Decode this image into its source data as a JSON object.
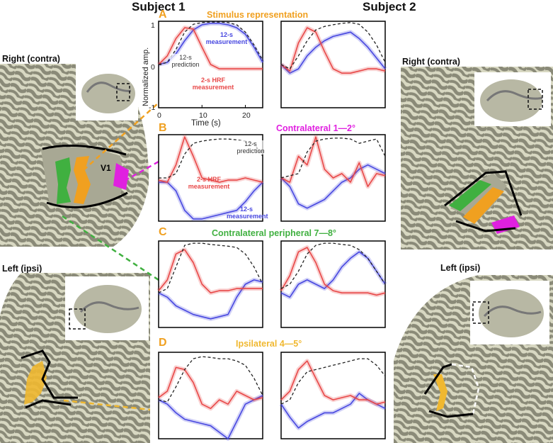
{
  "figure": {
    "subject1": "Subject 1",
    "subject2": "Subject 2",
    "hemispheres": {
      "s1_right": "Right (contra)",
      "s1_left": "Left (ipsi)",
      "s2_right": "Right (contra)",
      "s2_left": "Left (ipsi)"
    },
    "roi_label": "V1",
    "colors": {
      "stim": "#f0a020",
      "contra_near": "#e020e0",
      "contra_periph": "#40b040",
      "ipsi": "#f0b830",
      "red": "#e84848",
      "blue": "#4848e0",
      "pred": "#222222"
    }
  },
  "panels": {
    "A": {
      "letter": "A",
      "title": "Stimulus representation",
      "annot_blue": "12-s measurement",
      "annot_pred": "12-s prediction",
      "annot_red": "2-s HRF measurement"
    },
    "B": {
      "letter": "B",
      "title": "Contralateral 1—2°",
      "annot_pred": "12-s prediction",
      "annot_red": "2-s HRF measurement",
      "annot_blue": "12-s measurement"
    },
    "C": {
      "letter": "C",
      "title": "Contralateral peripheral 7—8°"
    },
    "D": {
      "letter": "D",
      "title": "Ipsilateral 4—5°"
    }
  },
  "axes": {
    "ylabel": "Normalized amp.",
    "xlabel": "Time (s)",
    "yticks": [
      "1",
      "0",
      "-1"
    ],
    "xticks": [
      "0",
      "10",
      "20"
    ]
  },
  "chart_data": [
    {
      "type": "line",
      "panel": "A",
      "subject": "Subject 1",
      "xlabel": "Time (s)",
      "ylabel": "Normalized amp.",
      "xlim": [
        0,
        24
      ],
      "ylim": [
        -1,
        1
      ],
      "series": [
        {
          "name": "12-s prediction",
          "style": "dashed",
          "color": "#222222",
          "x": [
            0,
            2,
            4,
            6,
            8,
            10,
            12,
            14,
            16,
            18,
            20,
            22,
            24
          ],
          "y": [
            0.0,
            0.05,
            0.35,
            0.75,
            0.93,
            0.97,
            0.98,
            0.98,
            0.97,
            0.92,
            0.75,
            0.45,
            0.1
          ]
        },
        {
          "name": "2-s HRF measurement",
          "style": "solid",
          "color": "#e84848",
          "x": [
            0,
            2,
            4,
            6,
            8,
            10,
            12,
            14,
            16,
            18,
            20,
            22,
            24
          ],
          "y": [
            0.0,
            0.2,
            0.6,
            0.85,
            0.82,
            0.4,
            0.0,
            -0.1,
            -0.1,
            -0.1,
            -0.1,
            -0.1,
            -0.1
          ]
        },
        {
          "name": "12-s measurement",
          "style": "solid",
          "color": "#4848e0",
          "x": [
            0,
            2,
            4,
            6,
            8,
            10,
            12,
            14,
            16,
            18,
            20,
            22,
            24
          ],
          "y": [
            0.0,
            0.05,
            0.25,
            0.55,
            0.8,
            0.92,
            0.95,
            0.95,
            0.92,
            0.85,
            0.7,
            0.4,
            0.05
          ]
        }
      ]
    },
    {
      "type": "line",
      "panel": "A",
      "subject": "Subject 2",
      "xlim": [
        0,
        24
      ],
      "ylim": [
        -1,
        1
      ],
      "series": [
        {
          "name": "12-s prediction",
          "style": "dashed",
          "color": "#222222",
          "x": [
            0,
            2,
            4,
            6,
            8,
            10,
            12,
            14,
            16,
            18,
            20,
            22,
            24
          ],
          "y": [
            0.0,
            -0.1,
            0.2,
            0.55,
            0.8,
            0.88,
            0.92,
            0.95,
            0.97,
            0.93,
            0.75,
            0.45,
            0.05
          ]
        },
        {
          "name": "2-s HRF measurement",
          "style": "solid",
          "color": "#e84848",
          "x": [
            0,
            2,
            4,
            6,
            8,
            10,
            12,
            14,
            16,
            18,
            20,
            22,
            24
          ],
          "y": [
            0.0,
            -0.15,
            0.5,
            0.85,
            0.75,
            0.3,
            -0.1,
            -0.2,
            -0.2,
            -0.15,
            -0.1,
            -0.1,
            -0.15
          ]
        },
        {
          "name": "12-s measurement",
          "style": "solid",
          "color": "#4848e0",
          "x": [
            0,
            2,
            4,
            6,
            8,
            10,
            12,
            14,
            16,
            18,
            20,
            22,
            24
          ],
          "y": [
            0.0,
            -0.2,
            -0.1,
            0.2,
            0.4,
            0.55,
            0.65,
            0.7,
            0.75,
            0.6,
            0.4,
            0.15,
            -0.1
          ]
        }
      ]
    },
    {
      "type": "line",
      "panel": "B",
      "subject": "Subject 1",
      "xlim": [
        0,
        24
      ],
      "ylim": [
        -1,
        1
      ],
      "series": [
        {
          "name": "12-s prediction",
          "style": "dashed",
          "color": "#222222",
          "x": [
            0,
            2,
            4,
            6,
            8,
            10,
            12,
            14,
            16,
            18,
            20,
            22,
            24
          ],
          "y": [
            0.0,
            0.0,
            0.1,
            0.55,
            0.8,
            0.85,
            0.88,
            0.9,
            0.9,
            0.88,
            0.85,
            0.8,
            0.5
          ]
        },
        {
          "name": "2-s HRF measurement",
          "style": "solid",
          "color": "#e84848",
          "x": [
            0,
            2,
            4,
            6,
            8,
            10,
            12,
            14,
            16,
            18,
            20,
            22,
            24
          ],
          "y": [
            -0.05,
            -0.1,
            0.3,
            0.95,
            0.5,
            0.0,
            -0.05,
            -0.1,
            -0.05,
            -0.05,
            0.0,
            -0.05,
            -0.1
          ]
        },
        {
          "name": "12-s measurement",
          "style": "solid",
          "color": "#4848e0",
          "x": [
            0,
            2,
            4,
            6,
            8,
            10,
            12,
            14,
            16,
            18,
            20,
            22,
            24
          ],
          "y": [
            -0.1,
            -0.1,
            -0.3,
            -0.75,
            -0.95,
            -0.95,
            -0.9,
            -0.85,
            -0.8,
            -0.75,
            -0.55,
            -0.3,
            -0.1
          ]
        }
      ]
    },
    {
      "type": "line",
      "panel": "B",
      "subject": "Subject 2",
      "xlim": [
        0,
        24
      ],
      "ylim": [
        -1,
        1
      ],
      "series": [
        {
          "name": "12-s prediction",
          "style": "dashed",
          "color": "#222222",
          "x": [
            0,
            2,
            4,
            6,
            8,
            10,
            12,
            14,
            16,
            18,
            20,
            22,
            24
          ],
          "y": [
            0.0,
            0.05,
            0.1,
            0.6,
            0.85,
            0.9,
            0.92,
            0.92,
            0.9,
            0.8,
            0.85,
            0.9,
            0.5
          ]
        },
        {
          "name": "2-s HRF measurement",
          "style": "solid",
          "color": "#e84848",
          "x": [
            0,
            2,
            4,
            6,
            8,
            10,
            12,
            14,
            16,
            18,
            20,
            22,
            24
          ],
          "y": [
            0.0,
            -0.1,
            0.5,
            0.3,
            0.95,
            0.2,
            0.0,
            0.1,
            -0.1,
            0.35,
            -0.2,
            0.1,
            0.05
          ]
        },
        {
          "name": "12-s measurement",
          "style": "solid",
          "color": "#4848e0",
          "x": [
            0,
            2,
            4,
            6,
            8,
            10,
            12,
            14,
            16,
            18,
            20,
            22,
            24
          ],
          "y": [
            0.0,
            -0.2,
            -0.6,
            -0.7,
            -0.6,
            -0.5,
            -0.3,
            -0.1,
            0.0,
            0.2,
            0.3,
            0.2,
            0.1
          ]
        }
      ]
    },
    {
      "type": "line",
      "panel": "C",
      "subject": "Subject 1",
      "xlim": [
        0,
        24
      ],
      "ylim": [
        -1,
        1
      ],
      "series": [
        {
          "name": "12-s prediction",
          "style": "dashed",
          "color": "#222222",
          "x": [
            0,
            2,
            4,
            6,
            8,
            10,
            12,
            14,
            16,
            18,
            20,
            22,
            24
          ],
          "y": [
            -0.2,
            -0.1,
            0.4,
            0.9,
            0.95,
            0.95,
            0.92,
            0.9,
            0.88,
            0.85,
            0.7,
            0.4,
            0.0
          ]
        },
        {
          "name": "2-s HRF measurement",
          "style": "solid",
          "color": "#e84848",
          "x": [
            0,
            2,
            4,
            6,
            8,
            10,
            12,
            14,
            16,
            18,
            20,
            22,
            24
          ],
          "y": [
            -0.15,
            0.1,
            0.7,
            0.8,
            0.5,
            0.0,
            -0.2,
            -0.15,
            -0.15,
            -0.1,
            -0.1,
            -0.1,
            -0.1
          ]
        },
        {
          "name": "12-s measurement",
          "style": "solid",
          "color": "#4848e0",
          "x": [
            0,
            2,
            4,
            6,
            8,
            10,
            12,
            14,
            16,
            18,
            20,
            22,
            24
          ],
          "y": [
            -0.2,
            -0.3,
            -0.5,
            -0.6,
            -0.7,
            -0.75,
            -0.8,
            -0.75,
            -0.7,
            -0.3,
            0.0,
            0.1,
            0.05
          ]
        }
      ]
    },
    {
      "type": "line",
      "panel": "C",
      "subject": "Subject 2",
      "xlim": [
        0,
        24
      ],
      "ylim": [
        -1,
        1
      ],
      "series": [
        {
          "name": "12-s prediction",
          "style": "dashed",
          "color": "#222222",
          "x": [
            0,
            2,
            4,
            6,
            8,
            10,
            12,
            14,
            16,
            18,
            20,
            22,
            24
          ],
          "y": [
            -0.1,
            0.0,
            0.3,
            0.7,
            0.9,
            0.95,
            0.95,
            0.92,
            0.9,
            0.8,
            0.6,
            0.3,
            0.0
          ]
        },
        {
          "name": "2-s HRF measurement",
          "style": "solid",
          "color": "#e84848",
          "x": [
            0,
            2,
            4,
            6,
            8,
            10,
            12,
            14,
            16,
            18,
            20,
            22,
            24
          ],
          "y": [
            -0.15,
            0.2,
            0.75,
            0.85,
            0.5,
            0.0,
            -0.15,
            -0.2,
            -0.2,
            -0.2,
            -0.2,
            -0.25,
            -0.2
          ]
        },
        {
          "name": "12-s measurement",
          "style": "solid",
          "color": "#4848e0",
          "x": [
            0,
            2,
            4,
            6,
            8,
            10,
            12,
            14,
            16,
            18,
            20,
            22,
            24
          ],
          "y": [
            -0.2,
            -0.3,
            0.0,
            0.1,
            0.0,
            -0.1,
            0.1,
            0.4,
            0.6,
            0.75,
            0.6,
            0.3,
            0.0
          ]
        }
      ]
    },
    {
      "type": "line",
      "panel": "D",
      "subject": "Subject 1",
      "xlim": [
        0,
        24
      ],
      "ylim": [
        -1,
        1
      ],
      "series": [
        {
          "name": "12-s prediction",
          "style": "dashed",
          "color": "#222222",
          "x": [
            0,
            2,
            4,
            6,
            8,
            10,
            12,
            14,
            16,
            18,
            20,
            22,
            24
          ],
          "y": [
            -0.1,
            -0.15,
            0.2,
            0.6,
            0.85,
            0.9,
            0.88,
            0.85,
            0.85,
            0.8,
            0.7,
            0.4,
            0.0
          ]
        },
        {
          "name": "2-s HRF measurement",
          "style": "solid",
          "color": "#e84848",
          "x": [
            0,
            2,
            4,
            6,
            8,
            10,
            12,
            14,
            16,
            18,
            20,
            22,
            24
          ],
          "y": [
            -0.05,
            0.1,
            0.65,
            0.6,
            0.3,
            -0.2,
            -0.3,
            -0.1,
            -0.2,
            0.1,
            0.0,
            -0.1,
            -0.05
          ]
        },
        {
          "name": "12-s measurement",
          "style": "solid",
          "color": "#4848e0",
          "x": [
            0,
            2,
            4,
            6,
            8,
            10,
            12,
            14,
            16,
            18,
            20,
            22,
            24
          ],
          "y": [
            -0.1,
            -0.2,
            -0.4,
            -0.55,
            -0.6,
            -0.65,
            -0.7,
            -0.85,
            -1.0,
            -0.6,
            -0.2,
            -0.1,
            0.0
          ]
        }
      ]
    },
    {
      "type": "line",
      "panel": "D",
      "subject": "Subject 2",
      "xlim": [
        0,
        24
      ],
      "ylim": [
        -1,
        1
      ],
      "series": [
        {
          "name": "12-s prediction",
          "style": "dashed",
          "color": "#222222",
          "x": [
            0,
            2,
            4,
            6,
            8,
            10,
            12,
            14,
            16,
            18,
            20,
            22,
            24
          ],
          "y": [
            -0.2,
            -0.1,
            0.3,
            0.55,
            0.6,
            0.65,
            0.7,
            0.75,
            0.8,
            0.85,
            0.85,
            0.7,
            0.45
          ]
        },
        {
          "name": "2-s HRF measurement",
          "style": "solid",
          "color": "#e84848",
          "x": [
            0,
            2,
            4,
            6,
            8,
            10,
            12,
            14,
            16,
            18,
            20,
            22,
            24
          ],
          "y": [
            -0.1,
            0.1,
            0.6,
            0.8,
            0.4,
            0.0,
            -0.1,
            -0.05,
            0.0,
            -0.1,
            -0.1,
            -0.2,
            -0.15
          ]
        },
        {
          "name": "12-s measurement",
          "style": "solid",
          "color": "#4848e0",
          "x": [
            0,
            2,
            4,
            6,
            8,
            10,
            12,
            14,
            16,
            18,
            20,
            22,
            24
          ],
          "y": [
            -0.2,
            -0.5,
            -0.75,
            -0.6,
            -0.5,
            -0.4,
            -0.4,
            -0.3,
            -0.2,
            0.05,
            -0.1,
            -0.2,
            -0.3
          ]
        }
      ]
    }
  ]
}
